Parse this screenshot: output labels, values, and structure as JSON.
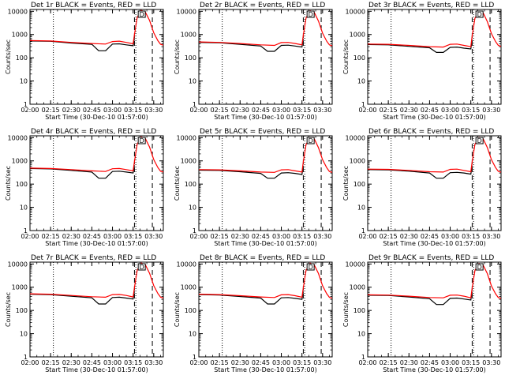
{
  "common": {
    "xlabel": "Start Time (30-Dec-10 01:57:00)",
    "ylabel": "Counts/sec",
    "x_tick_labels": [
      "02:00",
      "02:15",
      "02:30",
      "02:45",
      "03:00",
      "03:15",
      "03:30"
    ],
    "y_tick_labels": [
      "1",
      "10",
      "100",
      "1000",
      "10000"
    ],
    "marker_label": "D",
    "colors": {
      "events": "#000000",
      "lld": "#ff0000",
      "frame": "#000000"
    }
  },
  "chart_data": [
    {
      "type": "line",
      "title": "Det 1r BLACK = Events, RED = LLD",
      "xlim": [
        "02:00",
        "03:37"
      ],
      "ylim": [
        1,
        12000
      ],
      "y_scale": "log",
      "vlines_dotted": [
        "02:17",
        "03:17",
        "03:37"
      ],
      "vlines_dashed": [
        "03:16",
        "03:29"
      ],
      "series": [
        {
          "name": "Events",
          "x": [
            "02:00",
            "02:15",
            "02:30",
            "02:45",
            "02:50",
            "02:55",
            "03:00",
            "03:05",
            "03:10",
            "03:15",
            "03:16"
          ],
          "y": [
            530,
            510,
            430,
            380,
            200,
            200,
            390,
            400,
            360,
            330,
            700
          ]
        },
        {
          "name": "LLD",
          "x": [
            "02:00",
            "02:15",
            "02:30",
            "02:45",
            "02:55",
            "03:00",
            "03:05",
            "03:10",
            "03:15",
            "03:16",
            "03:18",
            "03:21",
            "03:24",
            "03:27",
            "03:30",
            "03:33",
            "03:35",
            "03:37"
          ],
          "y": [
            550,
            530,
            460,
            410,
            390,
            500,
            520,
            460,
            400,
            1000,
            5500,
            11000,
            9000,
            4000,
            1200,
            550,
            380,
            350
          ]
        }
      ]
    },
    {
      "type": "line",
      "title": "Det 2r BLACK = Events, RED = LLD",
      "xlim": [
        "02:00",
        "03:37"
      ],
      "ylim": [
        1,
        12000
      ],
      "y_scale": "log",
      "vlines_dotted": [
        "02:17",
        "03:17",
        "03:37"
      ],
      "vlines_dashed": [
        "03:16",
        "03:29"
      ],
      "series": [
        {
          "name": "Events",
          "x": [
            "02:00",
            "02:15",
            "02:30",
            "02:45",
            "02:50",
            "02:55",
            "03:00",
            "03:05",
            "03:10",
            "03:15",
            "03:16"
          ],
          "y": [
            460,
            440,
            380,
            320,
            190,
            190,
            340,
            350,
            320,
            290,
            650
          ]
        },
        {
          "name": "LLD",
          "x": [
            "02:00",
            "02:15",
            "02:30",
            "02:45",
            "02:55",
            "03:00",
            "03:05",
            "03:10",
            "03:15",
            "03:16",
            "03:18",
            "03:21",
            "03:24",
            "03:27",
            "03:30",
            "03:33",
            "03:35",
            "03:37"
          ],
          "y": [
            480,
            460,
            410,
            360,
            340,
            450,
            460,
            410,
            360,
            950,
            5200,
            10500,
            8800,
            3800,
            1150,
            520,
            360,
            330
          ]
        }
      ]
    },
    {
      "type": "line",
      "title": "Det 3r BLACK = Events, RED = LLD",
      "xlim": [
        "02:00",
        "03:37"
      ],
      "ylim": [
        1,
        12000
      ],
      "y_scale": "log",
      "vlines_dotted": [
        "02:17",
        "03:17",
        "03:37"
      ],
      "vlines_dashed": [
        "03:16",
        "03:29"
      ],
      "series": [
        {
          "name": "Events",
          "x": [
            "02:00",
            "02:15",
            "02:30",
            "02:45",
            "02:50",
            "02:55",
            "03:00",
            "03:05",
            "03:10",
            "03:15",
            "03:16"
          ],
          "y": [
            370,
            360,
            310,
            270,
            170,
            170,
            280,
            290,
            260,
            240,
            600
          ]
        },
        {
          "name": "LLD",
          "x": [
            "02:00",
            "02:15",
            "02:30",
            "02:45",
            "02:55",
            "03:00",
            "03:05",
            "03:10",
            "03:15",
            "03:16",
            "03:18",
            "03:21",
            "03:24",
            "03:27",
            "03:30",
            "03:33",
            "03:35",
            "03:37"
          ],
          "y": [
            390,
            380,
            340,
            300,
            290,
            380,
            390,
            340,
            300,
            900,
            5000,
            10000,
            8500,
            3600,
            1100,
            500,
            340,
            310
          ]
        }
      ]
    },
    {
      "type": "line",
      "title": "Det 4r BLACK = Events, RED = LLD",
      "xlim": [
        "02:00",
        "03:37"
      ],
      "ylim": [
        1,
        12000
      ],
      "y_scale": "log",
      "vlines_dotted": [
        "02:17",
        "03:17",
        "03:37"
      ],
      "vlines_dashed": [
        "03:16",
        "03:29"
      ],
      "series": [
        {
          "name": "Events",
          "x": [
            "02:00",
            "02:15",
            "02:30",
            "02:45",
            "02:50",
            "02:55",
            "03:00",
            "03:05",
            "03:10",
            "03:15",
            "03:16"
          ],
          "y": [
            470,
            450,
            390,
            330,
            180,
            180,
            350,
            360,
            330,
            300,
            650
          ]
        },
        {
          "name": "LLD",
          "x": [
            "02:00",
            "02:15",
            "02:30",
            "02:45",
            "02:55",
            "03:00",
            "03:05",
            "03:10",
            "03:15",
            "03:16",
            "03:18",
            "03:21",
            "03:24",
            "03:27",
            "03:30",
            "03:33",
            "03:35",
            "03:37"
          ],
          "y": [
            490,
            470,
            420,
            370,
            350,
            460,
            470,
            420,
            370,
            950,
            5300,
            10800,
            8900,
            3900,
            1150,
            520,
            360,
            330
          ]
        }
      ]
    },
    {
      "type": "line",
      "title": "Det 5r BLACK = Events, RED = LLD",
      "xlim": [
        "02:00",
        "03:37"
      ],
      "ylim": [
        1,
        12000
      ],
      "y_scale": "log",
      "vlines_dotted": [
        "02:17",
        "03:17",
        "03:37"
      ],
      "vlines_dashed": [
        "03:16",
        "03:29"
      ],
      "series": [
        {
          "name": "Events",
          "x": [
            "02:00",
            "02:15",
            "02:30",
            "02:45",
            "02:50",
            "02:55",
            "03:00",
            "03:05",
            "03:10",
            "03:15",
            "03:16"
          ],
          "y": [
            400,
            390,
            340,
            290,
            180,
            180,
            300,
            310,
            290,
            260,
            620
          ]
        },
        {
          "name": "LLD",
          "x": [
            "02:00",
            "02:15",
            "02:30",
            "02:45",
            "02:55",
            "03:00",
            "03:05",
            "03:10",
            "03:15",
            "03:16",
            "03:18",
            "03:21",
            "03:24",
            "03:27",
            "03:30",
            "03:33",
            "03:35",
            "03:37"
          ],
          "y": [
            420,
            410,
            370,
            330,
            320,
            410,
            420,
            370,
            330,
            920,
            5100,
            10300,
            8700,
            3700,
            1120,
            510,
            350,
            320
          ]
        }
      ]
    },
    {
      "type": "line",
      "title": "Det 6r BLACK = Events, RED = LLD",
      "xlim": [
        "02:00",
        "03:37"
      ],
      "ylim": [
        1,
        12000
      ],
      "y_scale": "log",
      "vlines_dotted": [
        "02:17",
        "03:17",
        "03:37"
      ],
      "vlines_dashed": [
        "03:16",
        "03:29"
      ],
      "series": [
        {
          "name": "Events",
          "x": [
            "02:00",
            "02:15",
            "02:30",
            "02:45",
            "02:50",
            "02:55",
            "03:00",
            "03:05",
            "03:10",
            "03:15",
            "03:16"
          ],
          "y": [
            420,
            410,
            360,
            300,
            180,
            180,
            310,
            320,
            300,
            270,
            630
          ]
        },
        {
          "name": "LLD",
          "x": [
            "02:00",
            "02:15",
            "02:30",
            "02:45",
            "02:55",
            "03:00",
            "03:05",
            "03:10",
            "03:15",
            "03:16",
            "03:18",
            "03:21",
            "03:24",
            "03:27",
            "03:30",
            "03:33",
            "03:35",
            "03:37"
          ],
          "y": [
            440,
            430,
            390,
            340,
            330,
            430,
            440,
            390,
            340,
            930,
            5150,
            10400,
            8750,
            3750,
            1130,
            515,
            355,
            325
          ]
        }
      ]
    },
    {
      "type": "line",
      "title": "Det 7r BLACK = Events, RED = LLD",
      "xlim": [
        "02:00",
        "03:37"
      ],
      "ylim": [
        1,
        12000
      ],
      "y_scale": "log",
      "vlines_dotted": [
        "02:17",
        "03:17",
        "03:37"
      ],
      "vlines_dashed": [
        "03:16",
        "03:29"
      ],
      "series": [
        {
          "name": "Events",
          "x": [
            "02:00",
            "02:15",
            "02:30",
            "02:45",
            "02:50",
            "02:55",
            "03:00",
            "03:05",
            "03:10",
            "03:15",
            "03:16"
          ],
          "y": [
            500,
            480,
            410,
            350,
            190,
            190,
            360,
            370,
            340,
            310,
            670
          ]
        },
        {
          "name": "LLD",
          "x": [
            "02:00",
            "02:15",
            "02:30",
            "02:45",
            "02:55",
            "03:00",
            "03:05",
            "03:10",
            "03:15",
            "03:16",
            "03:18",
            "03:21",
            "03:24",
            "03:27",
            "03:30",
            "03:33",
            "03:35",
            "03:37"
          ],
          "y": [
            520,
            500,
            440,
            390,
            370,
            480,
            490,
            440,
            380,
            980,
            5400,
            10900,
            8950,
            3950,
            1180,
            540,
            370,
            340
          ]
        }
      ]
    },
    {
      "type": "line",
      "title": "Det 8r BLACK = Events, RED = LLD",
      "xlim": [
        "02:00",
        "03:37"
      ],
      "ylim": [
        1,
        12000
      ],
      "y_scale": "log",
      "vlines_dotted": [
        "02:17",
        "03:17",
        "03:37"
      ],
      "vlines_dashed": [
        "03:16",
        "03:29"
      ],
      "series": [
        {
          "name": "Events",
          "x": [
            "02:00",
            "02:15",
            "02:30",
            "02:45",
            "02:50",
            "02:55",
            "03:00",
            "03:05",
            "03:10",
            "03:15",
            "03:16"
          ],
          "y": [
            480,
            460,
            400,
            340,
            190,
            190,
            350,
            360,
            330,
            300,
            660
          ]
        },
        {
          "name": "LLD",
          "x": [
            "02:00",
            "02:15",
            "02:30",
            "02:45",
            "02:55",
            "03:00",
            "03:05",
            "03:10",
            "03:15",
            "03:16",
            "03:18",
            "03:21",
            "03:24",
            "03:27",
            "03:30",
            "03:33",
            "03:35",
            "03:37"
          ],
          "y": [
            500,
            480,
            430,
            380,
            360,
            470,
            480,
            430,
            370,
            960,
            5350,
            10850,
            8900,
            3900,
            1160,
            530,
            365,
            335
          ]
        }
      ]
    },
    {
      "type": "line",
      "title": "Det 9r BLACK = Events, RED = LLD",
      "xlim": [
        "02:00",
        "03:37"
      ],
      "ylim": [
        1,
        12000
      ],
      "y_scale": "log",
      "vlines_dotted": [
        "02:17",
        "03:17",
        "03:37"
      ],
      "vlines_dashed": [
        "03:16",
        "03:29"
      ],
      "series": [
        {
          "name": "Events",
          "x": [
            "02:00",
            "02:15",
            "02:30",
            "02:45",
            "02:50",
            "02:55",
            "03:00",
            "03:05",
            "03:10",
            "03:15",
            "03:16"
          ],
          "y": [
            450,
            440,
            380,
            320,
            180,
            180,
            330,
            340,
            310,
            280,
            640
          ]
        },
        {
          "name": "LLD",
          "x": [
            "02:00",
            "02:15",
            "02:30",
            "02:45",
            "02:55",
            "03:00",
            "03:05",
            "03:10",
            "03:15",
            "03:16",
            "03:18",
            "03:21",
            "03:24",
            "03:27",
            "03:30",
            "03:33",
            "03:35",
            "03:37"
          ],
          "y": [
            470,
            460,
            410,
            360,
            350,
            450,
            460,
            410,
            350,
            940,
            5250,
            10600,
            8800,
            3850,
            1140,
            525,
            360,
            330
          ]
        }
      ]
    }
  ]
}
